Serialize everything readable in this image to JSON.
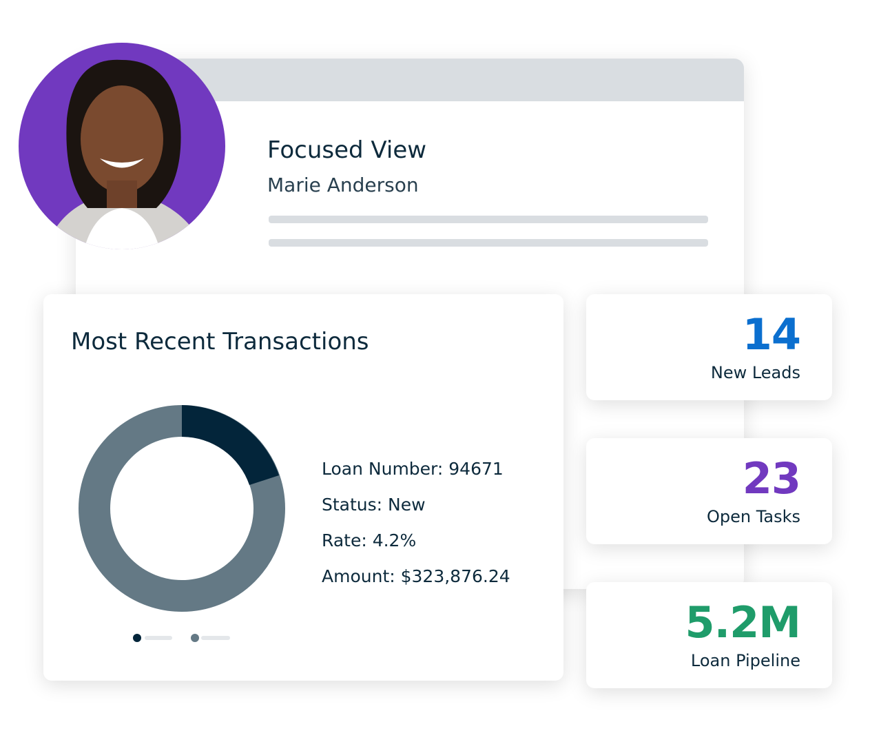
{
  "profile": {
    "title": "Focused View",
    "name": "Marie Anderson"
  },
  "transactions": {
    "title": "Most Recent Transactions",
    "details": [
      "Loan Number: 94671",
      "Status: New",
      "Rate: 4.2%",
      "Amount: $323,876.24"
    ]
  },
  "stats": [
    {
      "value": "14",
      "label": "New Leads",
      "color": "#0b6fcf"
    },
    {
      "value": "23",
      "label": "Open Tasks",
      "color": "#7139bf"
    },
    {
      "value": "5.2M",
      "label": "Loan Pipeline",
      "color": "#1f9c6a"
    }
  ]
}
